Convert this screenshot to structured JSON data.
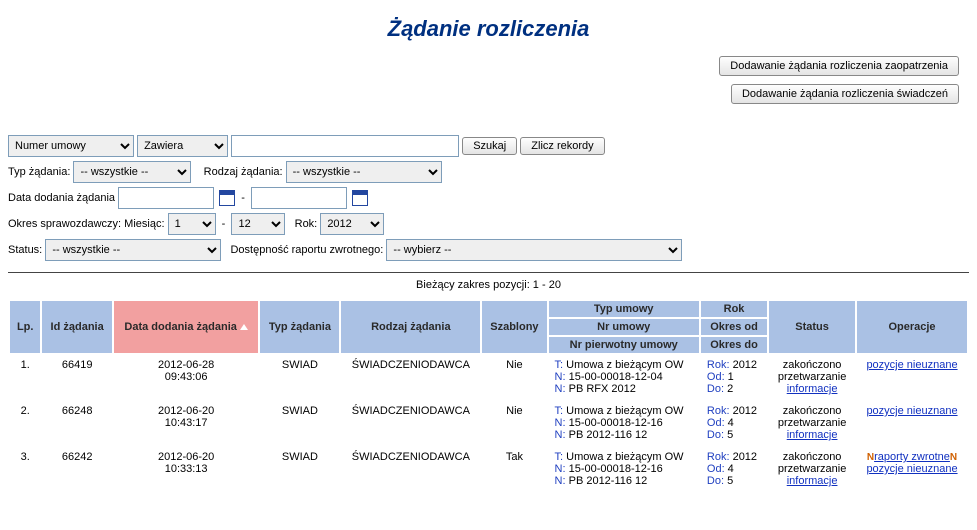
{
  "title": "Żądanie rozliczenia",
  "topButtons": {
    "addSupply": "Dodawanie żądania rozliczenia zaopatrzenia",
    "addBenefits": "Dodawanie żądania rozliczenia świadczeń"
  },
  "filters": {
    "fieldSelect": "Numer umowy",
    "opSelect": "Zawiera",
    "searchValue": "",
    "searchBtn": "Szukaj",
    "countBtn": "Zlicz rekordy",
    "typeLabel": "Typ żądania:",
    "typeValue": "-- wszystkie --",
    "kindLabel": "Rodzaj żądania:",
    "kindValue": "-- wszystkie --",
    "dateAddedLabel": "Data dodania żądania",
    "dateFrom": "",
    "dateTo": "",
    "periodLabel": "Okres sprawozdawczy:",
    "monthLabel": "Miesiąc:",
    "monthFrom": "1",
    "monthTo": "12",
    "yearLabel": "Rok:",
    "yearValue": "2012",
    "statusLabel": "Status:",
    "statusValue": "-- wszystkie --",
    "reportAvailLabel": "Dostępność raportu zwrotnego:",
    "reportAvailValue": "-- wybierz --"
  },
  "rangeCaption": "Bieżący zakres pozycji: 1 - 20",
  "headers": {
    "lp": "Lp.",
    "id": "Id żądania",
    "dateAdded": "Data dodania żądania",
    "type": "Typ żądania",
    "kind": "Rodzaj żądania",
    "templates": "Szablony",
    "agreementType": "Typ umowy",
    "agreementNo": "Nr umowy",
    "agreementPrimaryNo": "Nr pierwotny umowy",
    "year": "Rok",
    "periodFrom": "Okres od",
    "periodTo": "Okres do",
    "status": "Status",
    "ops": "Operacje"
  },
  "labels": {
    "T": "T:",
    "N": "N:",
    "Rok": "Rok:",
    "Od": "Od:",
    "Do": "Do:"
  },
  "statusText": {
    "line1": "zakończono",
    "line2": "przetwarzanie",
    "infoLink": "informacje"
  },
  "opsText": {
    "rejected": "pozycje nieuznane",
    "reports": "raporty zwrotne",
    "newMarker": "N"
  },
  "rows": [
    {
      "lp": "1.",
      "id": "66419",
      "date": "2012-06-28",
      "time": "09:43:06",
      "type": "SWIAD",
      "kind": "ŚWIADCZENIODAWCA",
      "templates": "Nie",
      "agrType": "Umowa z bieżącym OW",
      "agrNo": "15-00-00018-12-04",
      "agrPrimary": "PB RFX 2012",
      "year": "2012",
      "from": "1",
      "to": "2",
      "hasReports": false
    },
    {
      "lp": "2.",
      "id": "66248",
      "date": "2012-06-20",
      "time": "10:43:17",
      "type": "SWIAD",
      "kind": "ŚWIADCZENIODAWCA",
      "templates": "Nie",
      "agrType": "Umowa z bieżącym OW",
      "agrNo": "15-00-00018-12-16",
      "agrPrimary": "PB 2012-116 12",
      "year": "2012",
      "from": "4",
      "to": "5",
      "hasReports": false
    },
    {
      "lp": "3.",
      "id": "66242",
      "date": "2012-06-20",
      "time": "10:33:13",
      "type": "SWIAD",
      "kind": "ŚWIADCZENIODAWCA",
      "templates": "Tak",
      "agrType": "Umowa z bieżącym OW",
      "agrNo": "15-00-00018-12-16",
      "agrPrimary": "PB 2012-116 12",
      "year": "2012",
      "from": "4",
      "to": "5",
      "hasReports": true
    }
  ]
}
